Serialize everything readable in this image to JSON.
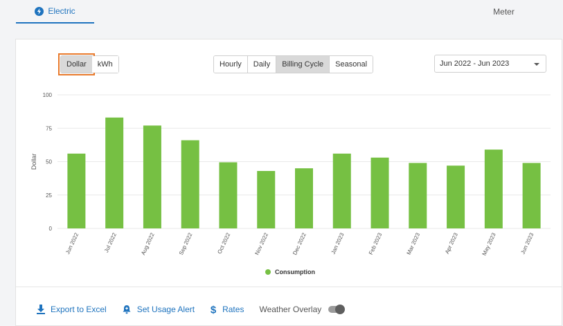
{
  "tabs": {
    "electric": "Electric",
    "meter": "Meter"
  },
  "toolbar": {
    "unit_options": [
      "Dollar",
      "kWh"
    ],
    "unit_selected": "Dollar",
    "range_options": [
      "Hourly",
      "Daily",
      "Billing Cycle",
      "Seasonal"
    ],
    "range_selected": "Billing Cycle",
    "date_range": "Jun 2022 - Jun 2023"
  },
  "chart_data": {
    "type": "bar",
    "ylabel": "Dollar",
    "xlabel": "",
    "ylim": [
      0,
      100
    ],
    "yticks": [
      "0",
      "25",
      "50",
      "75",
      "100"
    ],
    "categories": [
      "Jun 2022",
      "Jul 2022",
      "Aug 2022",
      "Sep 2022",
      "Oct 2022",
      "Nov 2022",
      "Dec 2022",
      "Jan 2023",
      "Feb 2023",
      "Mar 2023",
      "Apr 2023",
      "May 2023",
      "Jun 2023"
    ],
    "series": [
      {
        "name": "Consumption",
        "values": [
          56,
          83,
          77,
          66,
          49.5,
          43,
          45,
          56,
          53,
          49,
          47,
          59,
          49
        ]
      }
    ],
    "color": "#76c043",
    "grid": true,
    "legend": "bottom-center"
  },
  "footer": {
    "export_label": "Export to Excel",
    "alert_label": "Set Usage Alert",
    "rates_label": "Rates",
    "weather_label": "Weather Overlay",
    "weather_on": false
  },
  "colors": {
    "accent": "#1e73be",
    "highlight": "#e8792b",
    "bar": "#76c043"
  }
}
